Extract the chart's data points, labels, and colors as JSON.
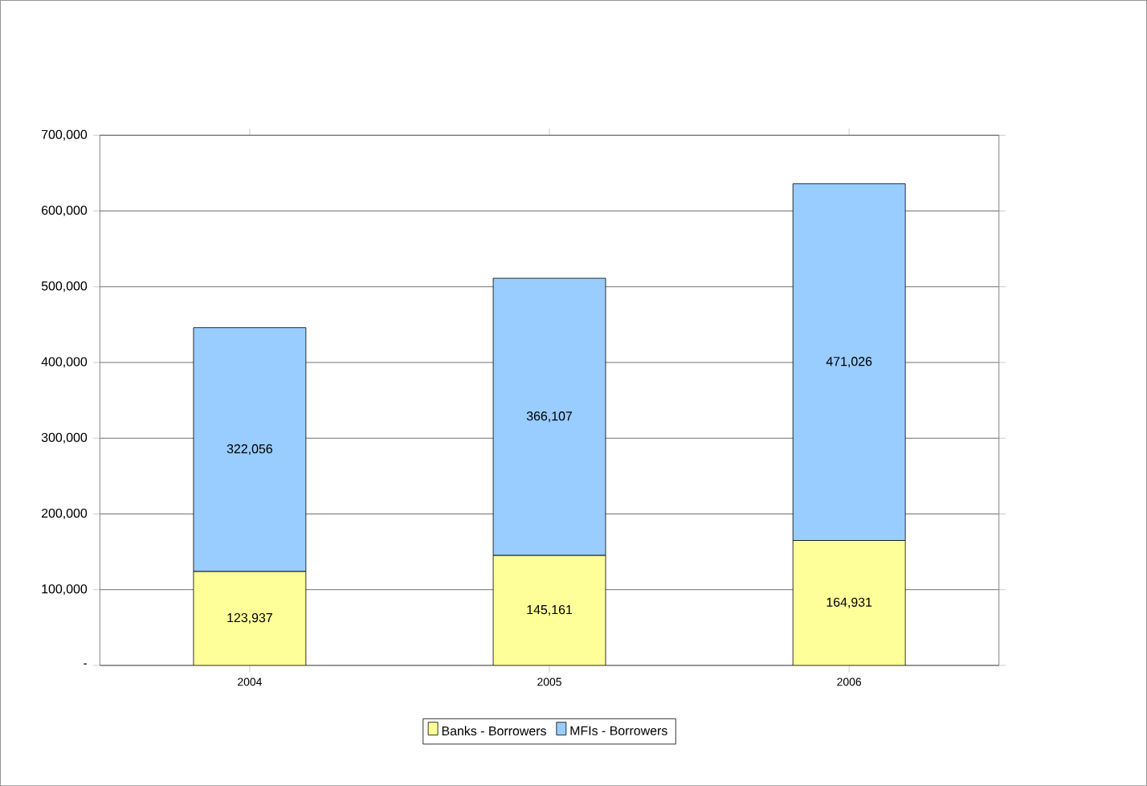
{
  "chart_data": {
    "type": "bar",
    "stacked": true,
    "categories": [
      "2004",
      "2005",
      "2006"
    ],
    "series": [
      {
        "name": "Banks - Borrowers",
        "color": "#ffff99",
        "values": [
          123937,
          145161,
          164931
        ],
        "value_labels": [
          "123,937",
          "145,161",
          "164,931"
        ]
      },
      {
        "name": "MFIs - Borrowers",
        "color": "#99ccff",
        "values": [
          322056,
          366107,
          471026
        ],
        "value_labels": [
          "322,056",
          "366,107",
          "471,026"
        ]
      }
    ],
    "ylim": [
      0,
      700000
    ],
    "yticks": [
      {
        "value": 0,
        "label": "-"
      },
      {
        "value": 100000,
        "label": "100,000"
      },
      {
        "value": 200000,
        "label": "200,000"
      },
      {
        "value": 300000,
        "label": "300,000"
      },
      {
        "value": 400000,
        "label": "400,000"
      },
      {
        "value": 500000,
        "label": "500,000"
      },
      {
        "value": 600000,
        "label": "600,000"
      },
      {
        "value": 700000,
        "label": "700,000"
      }
    ],
    "grid": "y",
    "legend": "bottom"
  }
}
